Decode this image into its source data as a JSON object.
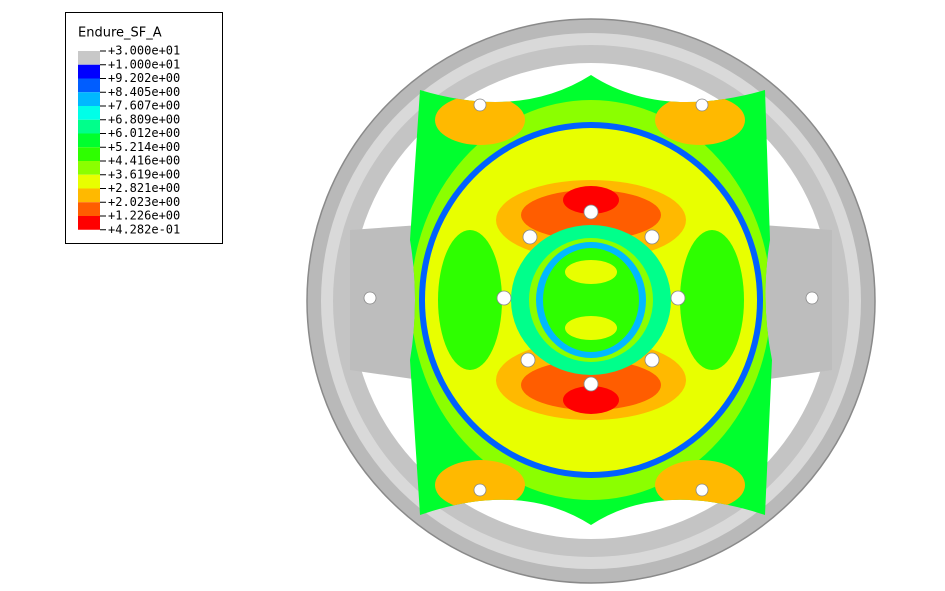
{
  "legend": {
    "title": "Endure_SF_A",
    "labels": [
      "+3.000e+01",
      "+1.000e+01",
      "+9.202e+00",
      "+8.405e+00",
      "+7.607e+00",
      "+6.809e+00",
      "+6.012e+00",
      "+5.214e+00",
      "+4.416e+00",
      "+3.619e+00",
      "+2.821e+00",
      "+2.023e+00",
      "+1.226e+00",
      "+4.282e-01"
    ],
    "colors": [
      "#c8c8c8",
      "#0000ff",
      "#005dff",
      "#00b9ff",
      "#00ffe8",
      "#00ff8b",
      "#00ff2e",
      "#2eff00",
      "#8bff00",
      "#e8ff00",
      "#ffb900",
      "#ff5d00",
      "#ff0000"
    ]
  }
}
